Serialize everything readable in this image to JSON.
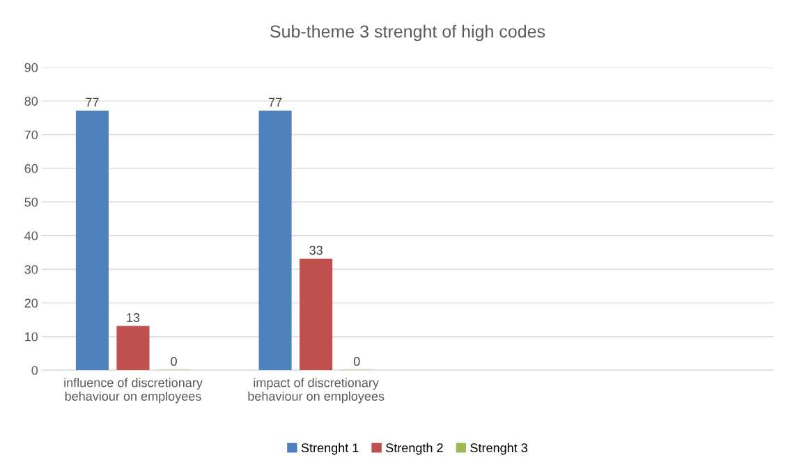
{
  "chart_data": {
    "type": "bar",
    "title": "Sub-theme 3 strenght of high codes",
    "categories": [
      "influence of discretionary behaviour on employees",
      "impact of discretionary behaviour on employees",
      null,
      null
    ],
    "series": [
      {
        "name": "Strenght 1",
        "color": "#4f81bd",
        "values": [
          77,
          77,
          null,
          null
        ]
      },
      {
        "name": "Strength 2",
        "color": "#c0504d",
        "values": [
          13,
          33,
          null,
          null
        ]
      },
      {
        "name": "Strenght 3",
        "color": "#9bbb59",
        "values": [
          0,
          0,
          null,
          null
        ]
      }
    ],
    "ylim": [
      0,
      90
    ],
    "yticks": [
      0,
      10,
      20,
      30,
      40,
      50,
      60,
      70,
      80,
      90
    ],
    "grid": "y",
    "legend": "bottom",
    "data_labels": true
  }
}
